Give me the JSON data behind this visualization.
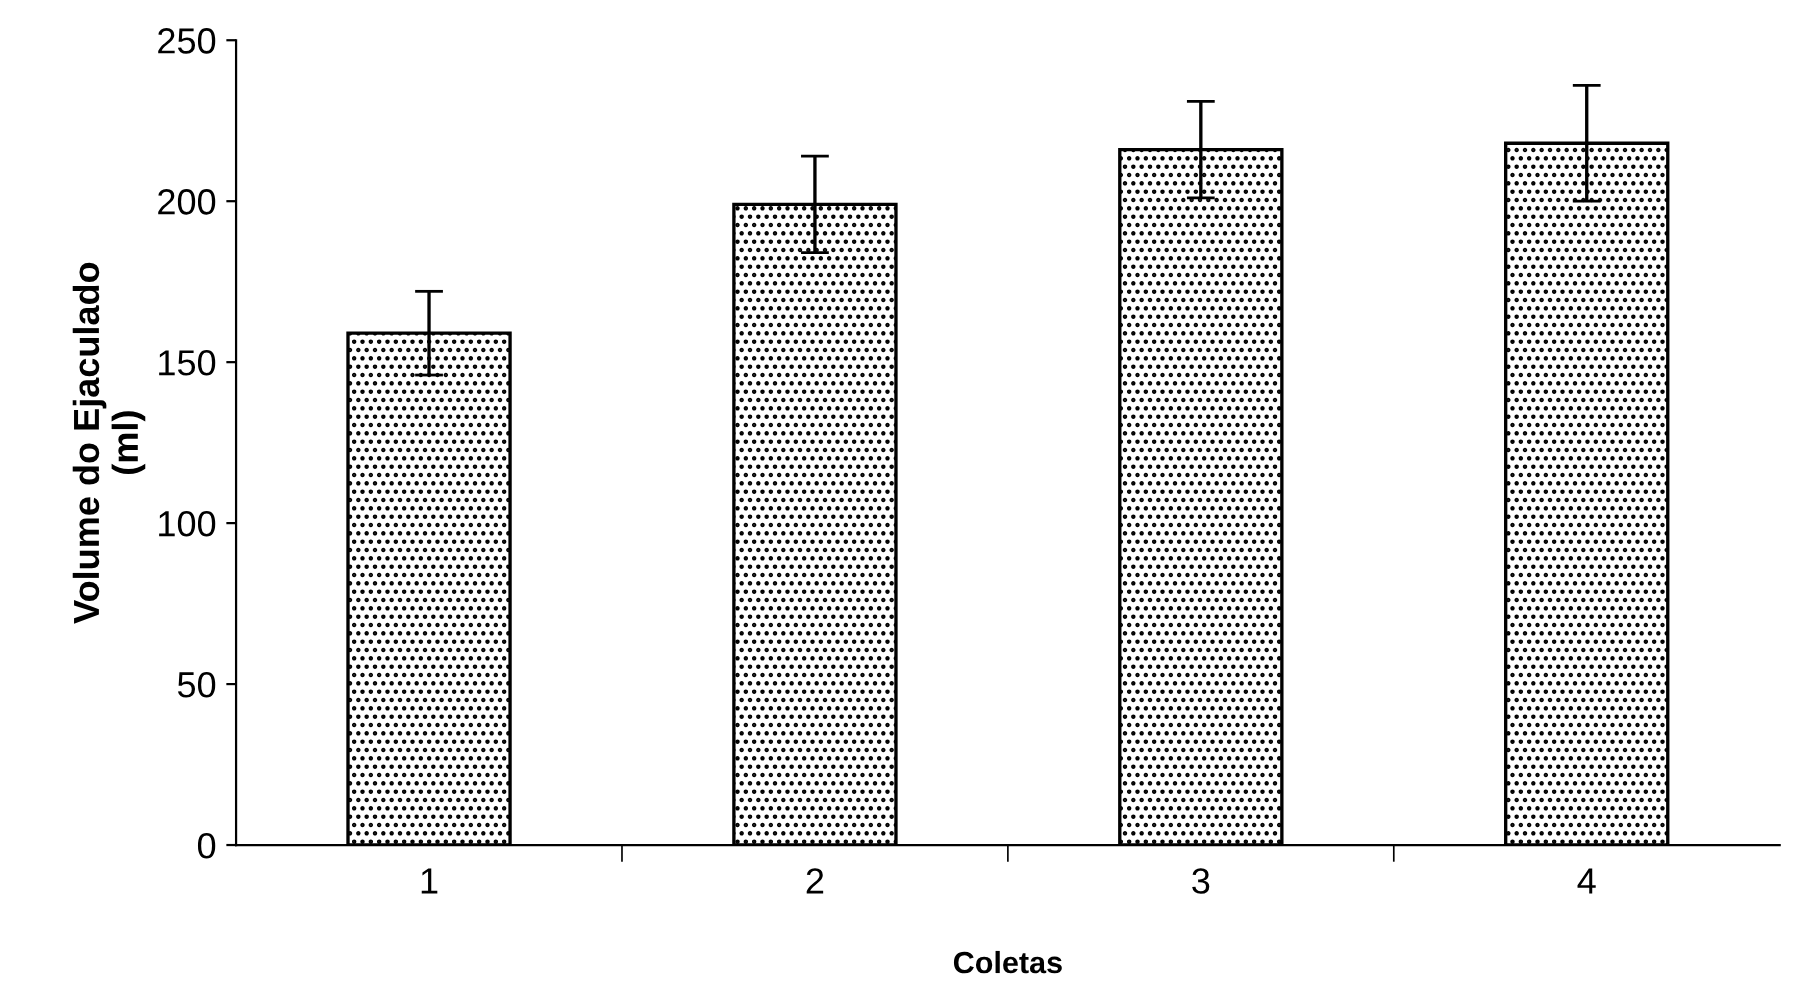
{
  "chart_data": {
    "type": "bar",
    "xlabel": "Coletas",
    "ylabel": "Volume do Ejaculado\n(ml)",
    "categories": [
      "1",
      "2",
      "3",
      "4"
    ],
    "values": [
      159,
      199,
      216,
      218
    ],
    "errors": [
      13,
      15,
      15,
      18
    ],
    "color": "#000000",
    "ylim": [
      0,
      250
    ],
    "yticks": [
      0,
      50,
      100,
      150,
      200,
      250
    ],
    "grid": false,
    "legend": false
  }
}
